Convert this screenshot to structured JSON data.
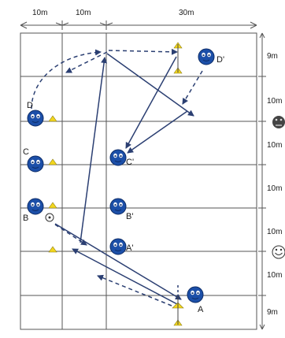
{
  "diagram": {
    "top_dimensions": [
      "10m",
      "10m",
      "30m"
    ],
    "side_dimensions": [
      "9m",
      "10m",
      "10m",
      "10m",
      "10m",
      "10m",
      "9m"
    ],
    "player_labels": {
      "A": "A",
      "A_prime": "A'",
      "B": "B",
      "B_prime": "B'",
      "C": "C",
      "C_prime": "C'",
      "D": "D",
      "D_prime": "D'"
    },
    "colors": {
      "grid": "#555555",
      "player": "#1c4fa8",
      "cone": "#f2d61e",
      "arrow": "#2b3f72",
      "neutral_face": "#444444"
    },
    "icons": [
      "smiley-face-icon",
      "neutral-face-icon",
      "ball-icon",
      "cone-icon",
      "player-icon"
    ]
  }
}
